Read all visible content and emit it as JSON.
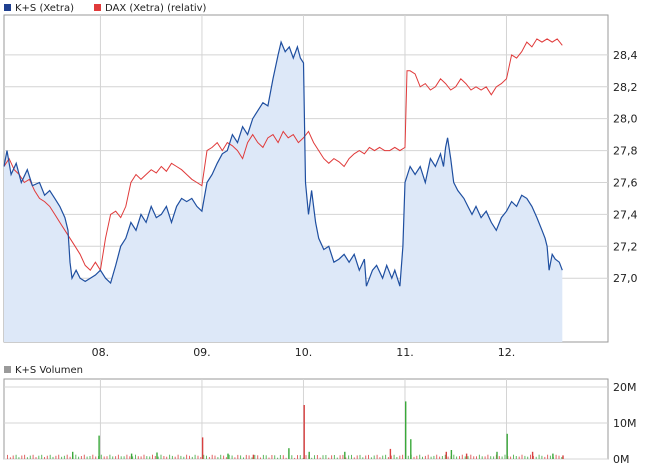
{
  "legend_top": [
    {
      "label": "K+S (Xetra)",
      "color": "#1f3f8f"
    },
    {
      "label": "DAX (Xetra) (relativ)",
      "color": "#e03a3a"
    }
  ],
  "legend_bottom": {
    "label": "K+S Volumen",
    "color": "#9a9a9a"
  },
  "colors": {
    "ks_line": "#1f4fa0",
    "ks_fill": "#dde8f8",
    "dax_line": "#e03a3a",
    "grid": "#d4d4d4",
    "frame": "#9a9a9a",
    "vol_green": "#3aa83a",
    "vol_red": "#d84040",
    "vol_grey": "#999999"
  },
  "chart_data": [
    {
      "type": "line",
      "x_ticks": [
        "08.",
        "09.",
        "10.",
        "11.",
        "12."
      ],
      "y_ticks": [
        "27,0",
        "27,2",
        "27,4",
        "27,6",
        "27,8",
        "28,0",
        "28,2",
        "28,4"
      ],
      "ylim": [
        26.6,
        28.65
      ],
      "xlim": [
        7.05,
        13.0
      ],
      "series": [
        {
          "name": "K+S (Xetra)",
          "points": [
            [
              7.05,
              27.7
            ],
            [
              7.08,
              27.8
            ],
            [
              7.12,
              27.65
            ],
            [
              7.17,
              27.72
            ],
            [
              7.22,
              27.6
            ],
            [
              7.28,
              27.68
            ],
            [
              7.33,
              27.58
            ],
            [
              7.4,
              27.6
            ],
            [
              7.45,
              27.52
            ],
            [
              7.5,
              27.55
            ],
            [
              7.55,
              27.5
            ],
            [
              7.6,
              27.45
            ],
            [
              7.65,
              27.38
            ],
            [
              7.68,
              27.3
            ],
            [
              7.7,
              27.1
            ],
            [
              7.72,
              27.0
            ],
            [
              7.76,
              27.05
            ],
            [
              7.8,
              27.0
            ],
            [
              7.85,
              26.98
            ],
            [
              7.9,
              27.0
            ],
            [
              7.95,
              27.02
            ],
            [
              8.0,
              27.05
            ],
            [
              8.05,
              27.0
            ],
            [
              8.1,
              26.97
            ],
            [
              8.15,
              27.08
            ],
            [
              8.2,
              27.2
            ],
            [
              8.25,
              27.25
            ],
            [
              8.3,
              27.35
            ],
            [
              8.35,
              27.3
            ],
            [
              8.4,
              27.4
            ],
            [
              8.45,
              27.35
            ],
            [
              8.5,
              27.45
            ],
            [
              8.55,
              27.38
            ],
            [
              8.6,
              27.4
            ],
            [
              8.65,
              27.45
            ],
            [
              8.7,
              27.35
            ],
            [
              8.75,
              27.45
            ],
            [
              8.8,
              27.5
            ],
            [
              8.85,
              27.48
            ],
            [
              8.9,
              27.5
            ],
            [
              8.95,
              27.45
            ],
            [
              9.0,
              27.42
            ],
            [
              9.05,
              27.6
            ],
            [
              9.1,
              27.65
            ],
            [
              9.15,
              27.72
            ],
            [
              9.2,
              27.78
            ],
            [
              9.25,
              27.8
            ],
            [
              9.3,
              27.9
            ],
            [
              9.35,
              27.85
            ],
            [
              9.4,
              27.95
            ],
            [
              9.45,
              27.9
            ],
            [
              9.5,
              28.0
            ],
            [
              9.55,
              28.05
            ],
            [
              9.6,
              28.1
            ],
            [
              9.65,
              28.08
            ],
            [
              9.7,
              28.25
            ],
            [
              9.75,
              28.4
            ],
            [
              9.78,
              28.48
            ],
            [
              9.82,
              28.42
            ],
            [
              9.86,
              28.45
            ],
            [
              9.9,
              28.38
            ],
            [
              9.94,
              28.45
            ],
            [
              9.97,
              28.38
            ],
            [
              10.0,
              28.35
            ],
            [
              10.02,
              27.6
            ],
            [
              10.05,
              27.4
            ],
            [
              10.08,
              27.55
            ],
            [
              10.12,
              27.35
            ],
            [
              10.15,
              27.25
            ],
            [
              10.2,
              27.18
            ],
            [
              10.25,
              27.2
            ],
            [
              10.3,
              27.1
            ],
            [
              10.35,
              27.12
            ],
            [
              10.4,
              27.15
            ],
            [
              10.45,
              27.1
            ],
            [
              10.5,
              27.15
            ],
            [
              10.55,
              27.05
            ],
            [
              10.6,
              27.12
            ],
            [
              10.62,
              26.95
            ],
            [
              10.68,
              27.05
            ],
            [
              10.72,
              27.08
            ],
            [
              10.78,
              27.0
            ],
            [
              10.82,
              27.08
            ],
            [
              10.87,
              27.0
            ],
            [
              10.9,
              27.05
            ],
            [
              10.95,
              26.95
            ],
            [
              10.98,
              27.2
            ],
            [
              11.0,
              27.6
            ],
            [
              11.05,
              27.7
            ],
            [
              11.1,
              27.65
            ],
            [
              11.15,
              27.7
            ],
            [
              11.2,
              27.6
            ],
            [
              11.25,
              27.75
            ],
            [
              11.3,
              27.7
            ],
            [
              11.35,
              27.78
            ],
            [
              11.38,
              27.7
            ],
            [
              11.4,
              27.82
            ],
            [
              11.42,
              27.88
            ],
            [
              11.45,
              27.75
            ],
            [
              11.48,
              27.6
            ],
            [
              11.52,
              27.55
            ],
            [
              11.58,
              27.5
            ],
            [
              11.62,
              27.45
            ],
            [
              11.66,
              27.4
            ],
            [
              11.7,
              27.45
            ],
            [
              11.75,
              27.38
            ],
            [
              11.8,
              27.42
            ],
            [
              11.85,
              27.35
            ],
            [
              11.9,
              27.3
            ],
            [
              11.95,
              27.38
            ],
            [
              12.0,
              27.42
            ],
            [
              12.05,
              27.48
            ],
            [
              12.1,
              27.45
            ],
            [
              12.15,
              27.52
            ],
            [
              12.2,
              27.5
            ],
            [
              12.25,
              27.45
            ],
            [
              12.3,
              27.38
            ],
            [
              12.35,
              27.3
            ],
            [
              12.38,
              27.25
            ],
            [
              12.4,
              27.2
            ],
            [
              12.42,
              27.05
            ],
            [
              12.45,
              27.15
            ],
            [
              12.48,
              27.12
            ],
            [
              12.52,
              27.1
            ],
            [
              12.55,
              27.05
            ]
          ]
        },
        {
          "name": "DAX (Xetra) (relativ)",
          "points": [
            [
              7.05,
              27.7
            ],
            [
              7.1,
              27.75
            ],
            [
              7.15,
              27.68
            ],
            [
              7.2,
              27.65
            ],
            [
              7.25,
              27.6
            ],
            [
              7.3,
              27.62
            ],
            [
              7.35,
              27.55
            ],
            [
              7.4,
              27.5
            ],
            [
              7.45,
              27.48
            ],
            [
              7.5,
              27.45
            ],
            [
              7.55,
              27.4
            ],
            [
              7.6,
              27.35
            ],
            [
              7.65,
              27.3
            ],
            [
              7.7,
              27.25
            ],
            [
              7.75,
              27.2
            ],
            [
              7.8,
              27.15
            ],
            [
              7.85,
              27.08
            ],
            [
              7.9,
              27.05
            ],
            [
              7.95,
              27.1
            ],
            [
              8.0,
              27.05
            ],
            [
              8.05,
              27.25
            ],
            [
              8.1,
              27.4
            ],
            [
              8.15,
              27.42
            ],
            [
              8.2,
              27.38
            ],
            [
              8.25,
              27.45
            ],
            [
              8.3,
              27.6
            ],
            [
              8.35,
              27.65
            ],
            [
              8.4,
              27.62
            ],
            [
              8.45,
              27.65
            ],
            [
              8.5,
              27.68
            ],
            [
              8.55,
              27.66
            ],
            [
              8.6,
              27.7
            ],
            [
              8.65,
              27.67
            ],
            [
              8.7,
              27.72
            ],
            [
              8.75,
              27.7
            ],
            [
              8.8,
              27.68
            ],
            [
              8.85,
              27.65
            ],
            [
              8.9,
              27.62
            ],
            [
              8.95,
              27.6
            ],
            [
              9.0,
              27.58
            ],
            [
              9.05,
              27.8
            ],
            [
              9.1,
              27.82
            ],
            [
              9.15,
              27.85
            ],
            [
              9.2,
              27.8
            ],
            [
              9.25,
              27.85
            ],
            [
              9.3,
              27.83
            ],
            [
              9.35,
              27.8
            ],
            [
              9.4,
              27.75
            ],
            [
              9.45,
              27.85
            ],
            [
              9.5,
              27.9
            ],
            [
              9.55,
              27.85
            ],
            [
              9.6,
              27.82
            ],
            [
              9.65,
              27.88
            ],
            [
              9.7,
              27.9
            ],
            [
              9.75,
              27.85
            ],
            [
              9.8,
              27.92
            ],
            [
              9.85,
              27.88
            ],
            [
              9.9,
              27.9
            ],
            [
              9.95,
              27.85
            ],
            [
              10.0,
              27.88
            ],
            [
              10.05,
              27.92
            ],
            [
              10.1,
              27.85
            ],
            [
              10.15,
              27.8
            ],
            [
              10.2,
              27.75
            ],
            [
              10.25,
              27.72
            ],
            [
              10.3,
              27.75
            ],
            [
              10.35,
              27.73
            ],
            [
              10.4,
              27.7
            ],
            [
              10.45,
              27.75
            ],
            [
              10.5,
              27.78
            ],
            [
              10.55,
              27.8
            ],
            [
              10.6,
              27.78
            ],
            [
              10.65,
              27.82
            ],
            [
              10.7,
              27.8
            ],
            [
              10.75,
              27.82
            ],
            [
              10.8,
              27.8
            ],
            [
              10.85,
              27.8
            ],
            [
              10.9,
              27.82
            ],
            [
              10.95,
              27.8
            ],
            [
              11.0,
              27.82
            ],
            [
              11.02,
              28.3
            ],
            [
              11.05,
              28.3
            ],
            [
              11.1,
              28.28
            ],
            [
              11.15,
              28.2
            ],
            [
              11.2,
              28.22
            ],
            [
              11.25,
              28.18
            ],
            [
              11.3,
              28.2
            ],
            [
              11.35,
              28.25
            ],
            [
              11.4,
              28.22
            ],
            [
              11.45,
              28.18
            ],
            [
              11.5,
              28.2
            ],
            [
              11.55,
              28.25
            ],
            [
              11.6,
              28.22
            ],
            [
              11.65,
              28.18
            ],
            [
              11.7,
              28.2
            ],
            [
              11.75,
              28.18
            ],
            [
              11.8,
              28.2
            ],
            [
              11.85,
              28.15
            ],
            [
              11.9,
              28.2
            ],
            [
              11.95,
              28.22
            ],
            [
              12.0,
              28.25
            ],
            [
              12.05,
              28.4
            ],
            [
              12.1,
              28.38
            ],
            [
              12.15,
              28.42
            ],
            [
              12.2,
              28.48
            ],
            [
              12.25,
              28.45
            ],
            [
              12.3,
              28.5
            ],
            [
              12.35,
              28.48
            ],
            [
              12.4,
              28.5
            ],
            [
              12.45,
              28.48
            ],
            [
              12.5,
              28.5
            ],
            [
              12.55,
              28.46
            ]
          ]
        }
      ]
    },
    {
      "type": "bar",
      "x_ticks": [
        "08.",
        "09.",
        "10.",
        "11.",
        "12."
      ],
      "y_ticks": [
        "0M",
        "10M",
        "20M"
      ],
      "ylim": [
        0,
        20
      ],
      "xlim": [
        7.05,
        13.0
      ],
      "series": [
        {
          "name": "K+S Volumen",
          "bars": [
            [
              7.72,
              2.0,
              "g"
            ],
            [
              7.98,
              6.5,
              "g"
            ],
            [
              8.3,
              1.5,
              "g"
            ],
            [
              8.55,
              1.8,
              "g"
            ],
            [
              9.0,
              6.0,
              "r"
            ],
            [
              9.25,
              1.5,
              "g"
            ],
            [
              9.5,
              1.2,
              "r"
            ],
            [
              9.85,
              3.0,
              "g"
            ],
            [
              10.0,
              15.0,
              "r"
            ],
            [
              10.05,
              2.0,
              "g"
            ],
            [
              10.4,
              2.0,
              "g"
            ],
            [
              10.85,
              2.8,
              "r"
            ],
            [
              11.0,
              16.0,
              "g"
            ],
            [
              11.05,
              5.5,
              "g"
            ],
            [
              11.4,
              2.0,
              "r"
            ],
            [
              11.45,
              2.5,
              "g"
            ],
            [
              11.6,
              1.5,
              "r"
            ],
            [
              11.9,
              2.0,
              "g"
            ],
            [
              12.0,
              7.0,
              "g"
            ],
            [
              12.25,
              2.0,
              "r"
            ],
            [
              12.45,
              1.5,
              "g"
            ],
            [
              12.55,
              1.0,
              "r"
            ]
          ]
        }
      ]
    }
  ]
}
